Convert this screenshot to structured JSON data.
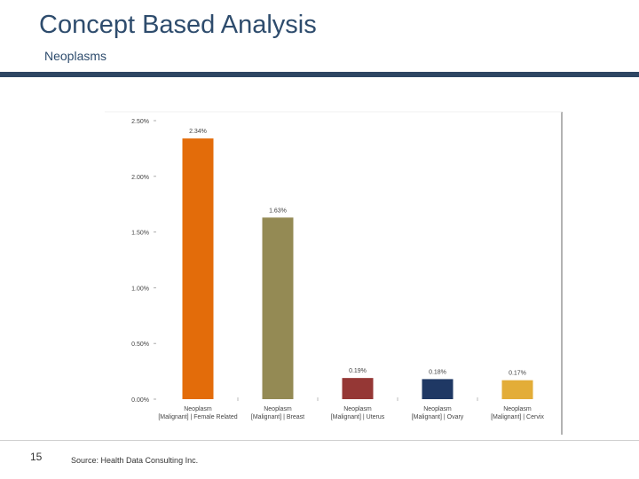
{
  "slide": {
    "title": "Concept Based Analysis",
    "subtitle": "Neoplasms",
    "page_number": "15",
    "source": "Source: Health Data Consulting Inc."
  },
  "colors": {
    "title": "#2e4c6d",
    "rule": "#2e4663"
  },
  "chart_data": {
    "type": "bar",
    "title": "",
    "xlabel": "",
    "ylabel": "",
    "ylim": [
      0,
      2.5
    ],
    "yticks": [
      "0.00%",
      "0.50%",
      "1.00%",
      "1.50%",
      "2.00%",
      "2.50%"
    ],
    "grid": false,
    "legend": "none",
    "categories": [
      [
        "Neoplasm",
        "[Malignant] | Female Related"
      ],
      [
        "Neoplasm",
        "[Malignant] | Breast"
      ],
      [
        "Neoplasm",
        "[Malignant] | Uterus"
      ],
      [
        "Neoplasm",
        "[Malignant] | Ovary"
      ],
      [
        "Neoplasm",
        "[Malignant] | Cervix"
      ]
    ],
    "values": [
      2.34,
      1.63,
      0.19,
      0.18,
      0.17
    ],
    "data_labels": [
      "2.34%",
      "1.63%",
      "0.19%",
      "0.18%",
      "0.17%"
    ],
    "bar_colors": [
      "#e36c0a",
      "#948a54",
      "#953735",
      "#1f3864",
      "#e3ad38"
    ]
  }
}
